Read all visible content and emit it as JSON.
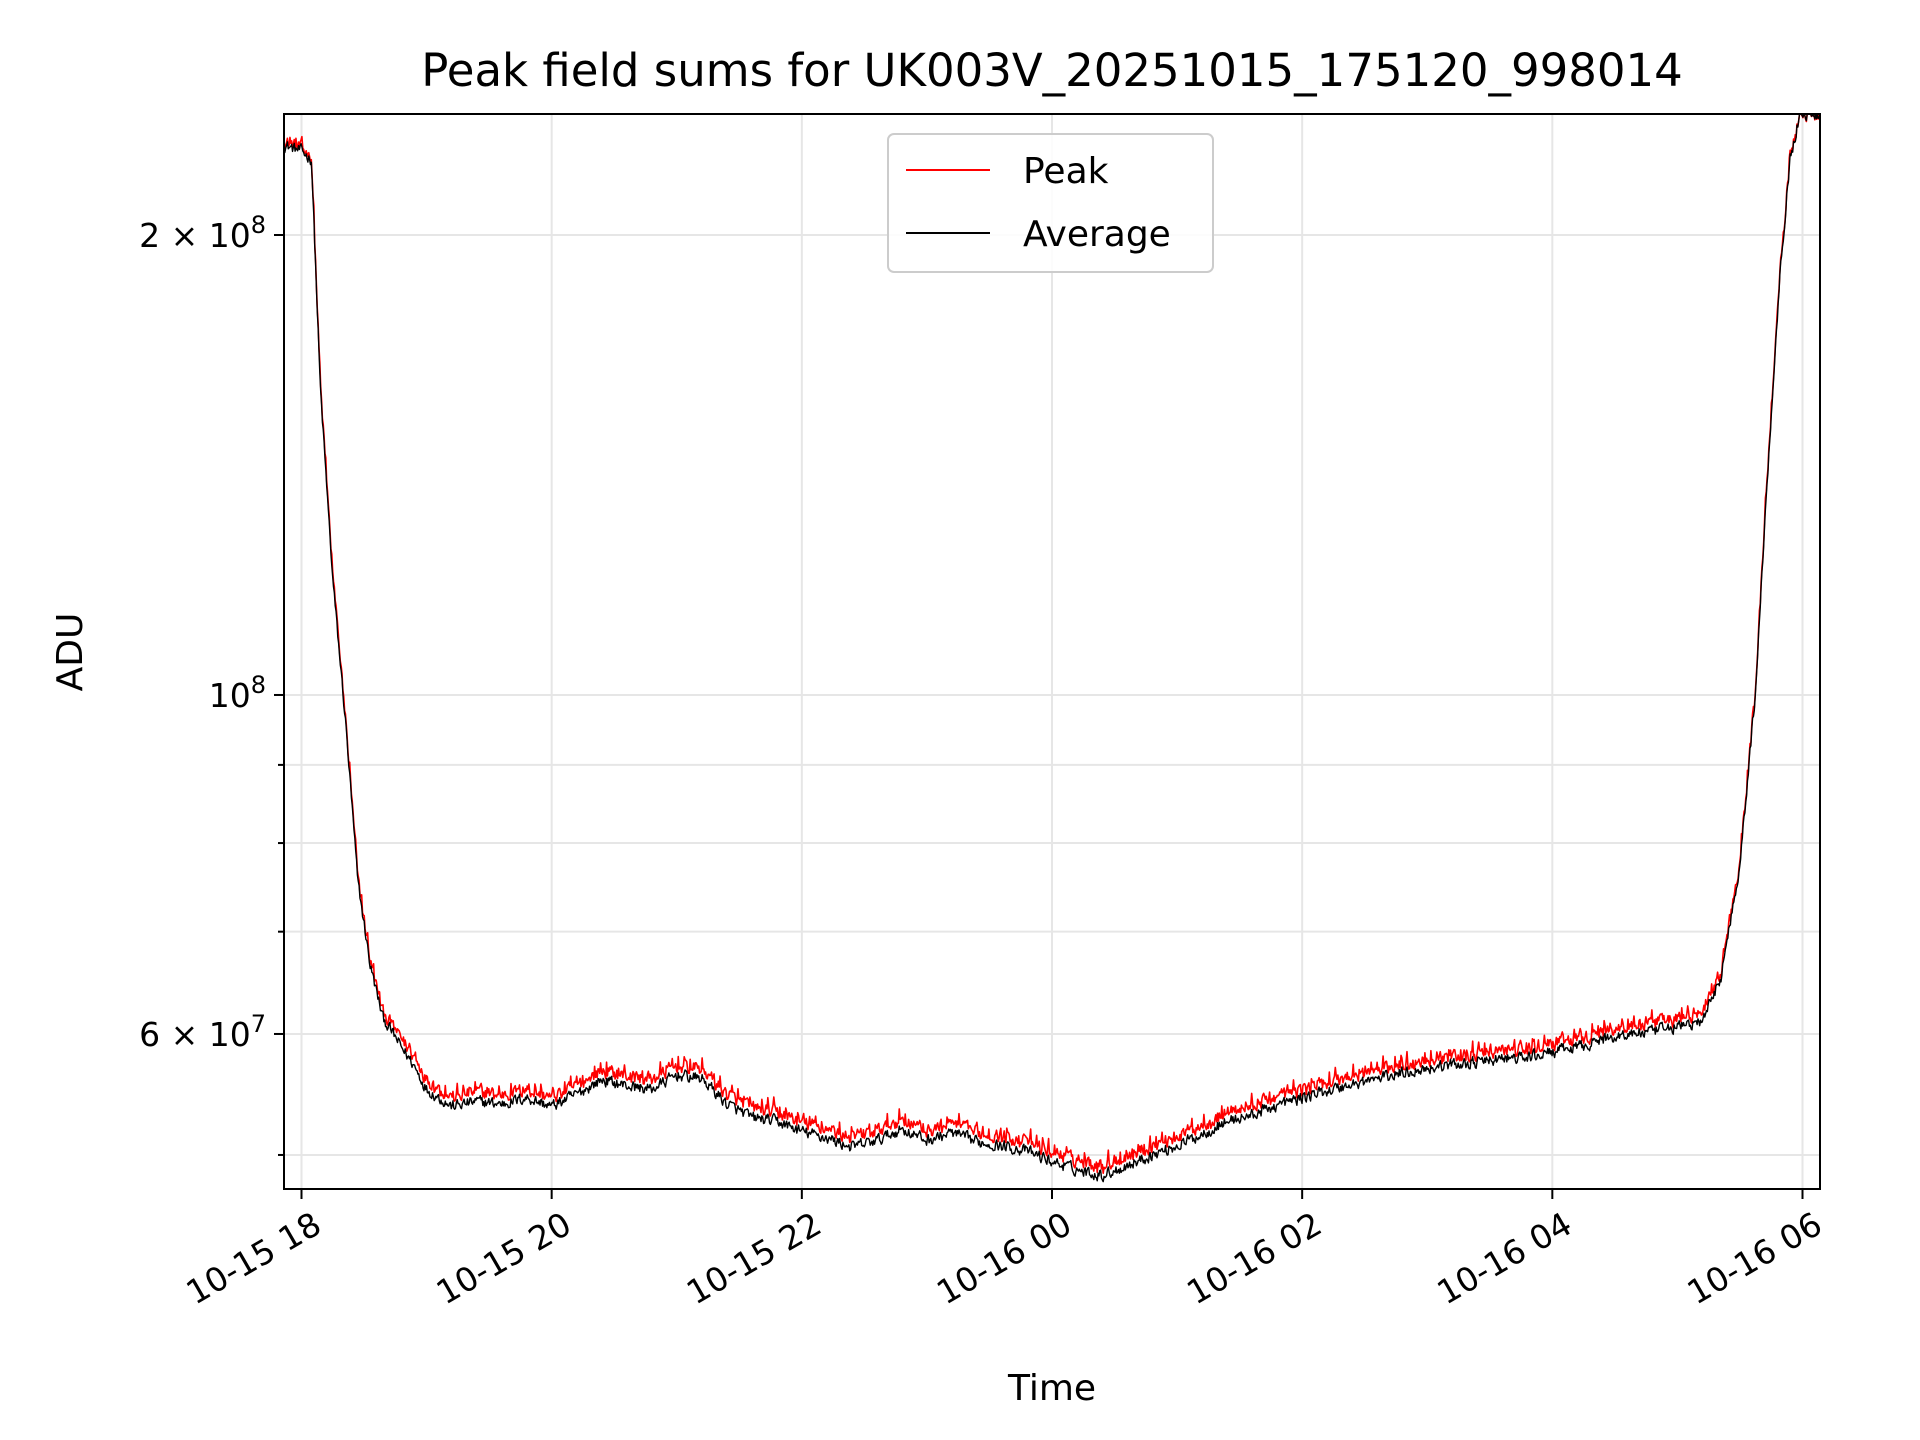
{
  "chart_data": {
    "type": "line",
    "title": "Peak field sums for UK003V_20251015_175120_998014",
    "xlabel": "Time",
    "ylabel": "ADU",
    "yscale": "log",
    "ylim": [
      47500000,
      240000000
    ],
    "xlim_hours": [
      -0.14,
      12.14
    ],
    "x_ticks": [
      {
        "hour": 0,
        "label": "10-15 18"
      },
      {
        "hour": 2,
        "label": "10-15 20"
      },
      {
        "hour": 4,
        "label": "10-15 22"
      },
      {
        "hour": 6,
        "label": "10-16 00"
      },
      {
        "hour": 8,
        "label": "10-16 02"
      },
      {
        "hour": 10,
        "label": "10-16 04"
      },
      {
        "hour": 12,
        "label": "10-16 06"
      }
    ],
    "y_major_ticks": [
      {
        "value": 200000000,
        "label_base": "2 × 10",
        "label_exp": "8"
      },
      {
        "value": 100000000,
        "label_base": "10",
        "label_exp": "8"
      },
      {
        "value": 60000000,
        "label_base": "6 × 10",
        "label_exp": "7"
      }
    ],
    "y_minor_grid": [
      50000000,
      70000000,
      80000000,
      90000000
    ],
    "grid": true,
    "legend_position": "upper center",
    "series": [
      {
        "name": "Peak",
        "color": "#ff0000",
        "x_hours": [
          -0.14,
          0,
          0.08,
          0.15,
          0.25,
          0.35,
          0.45,
          0.55,
          0.65,
          0.8,
          0.9,
          1.0,
          1.2,
          1.4,
          1.6,
          1.8,
          2.0,
          2.2,
          2.4,
          2.6,
          2.8,
          3.0,
          3.2,
          3.4,
          3.6,
          3.8,
          4.0,
          4.2,
          4.4,
          4.6,
          4.8,
          5.0,
          5.2,
          5.4,
          5.6,
          5.8,
          6.0,
          6.2,
          6.4,
          6.6,
          6.8,
          7.0,
          7.2,
          7.4,
          7.6,
          7.8,
          8.0,
          8.2,
          8.4,
          8.6,
          8.8,
          9.0,
          9.2,
          9.4,
          9.6,
          9.8,
          10.0,
          10.2,
          10.4,
          10.6,
          10.8,
          11.0,
          11.2,
          11.35,
          11.5,
          11.62,
          11.72,
          11.82,
          11.9,
          11.98
        ],
        "values": [
          230000000,
          228000000,
          225000000,
          160000000,
          120000000,
          97000000,
          76000000,
          67000000,
          62000000,
          59500000,
          58000000,
          56000000,
          54500000,
          55000000,
          54700000,
          55200000,
          54500000,
          55500000,
          56800000,
          56300000,
          56000000,
          57200000,
          56900000,
          54800000,
          53700000,
          53300000,
          52500000,
          52000000,
          51300000,
          51800000,
          52800000,
          51800000,
          52400000,
          51700000,
          51400000,
          51000000,
          50200000,
          49600000,
          49200000,
          49900000,
          50700000,
          51400000,
          52300000,
          53300000,
          53800000,
          54600000,
          55200000,
          55800000,
          56300000,
          56800000,
          57300000,
          57700000,
          58000000,
          58200000,
          58500000,
          58600000,
          59100000,
          59500000,
          60200000,
          60700000,
          60900000,
          61400000,
          61800000,
          66000000,
          78000000,
          100000000,
          140000000,
          190000000,
          225000000,
          240000000
        ],
        "noise_amplitude": 0.015,
        "noise_offset": 0.01
      },
      {
        "name": "Average",
        "color": "#000000",
        "x_hours": [
          -0.14,
          0,
          0.08,
          0.15,
          0.25,
          0.35,
          0.45,
          0.55,
          0.65,
          0.8,
          0.9,
          1.0,
          1.2,
          1.4,
          1.6,
          1.8,
          2.0,
          2.2,
          2.4,
          2.6,
          2.8,
          3.0,
          3.2,
          3.4,
          3.6,
          3.8,
          4.0,
          4.2,
          4.4,
          4.6,
          4.8,
          5.0,
          5.2,
          5.4,
          5.6,
          5.8,
          6.0,
          6.2,
          6.4,
          6.6,
          6.8,
          7.0,
          7.2,
          7.4,
          7.6,
          7.8,
          8.0,
          8.2,
          8.4,
          8.6,
          8.8,
          9.0,
          9.2,
          9.4,
          9.6,
          9.8,
          10.0,
          10.2,
          10.4,
          10.6,
          10.8,
          11.0,
          11.2,
          11.35,
          11.5,
          11.62,
          11.72,
          11.82,
          11.9,
          11.98
        ],
        "values": [
          229000000,
          227000000,
          224000000,
          159000000,
          119000000,
          96500000,
          75500000,
          66500000,
          61500000,
          58800000,
          57200000,
          55200000,
          53800000,
          54200000,
          54000000,
          54500000,
          53800000,
          54800000,
          56000000,
          55500000,
          55200000,
          56400000,
          56100000,
          54000000,
          52900000,
          52600000,
          51800000,
          51300000,
          50600000,
          51100000,
          52000000,
          51100000,
          51700000,
          51000000,
          50700000,
          50300000,
          49500000,
          48900000,
          48500000,
          49200000,
          50000000,
          50700000,
          51600000,
          52600000,
          53100000,
          53900000,
          54500000,
          55100000,
          55600000,
          56100000,
          56600000,
          57000000,
          57300000,
          57500000,
          57800000,
          57900000,
          58400000,
          58800000,
          59500000,
          60000000,
          60200000,
          60700000,
          61100000,
          65500000,
          77500000,
          99500000,
          139000000,
          189000000,
          224000000,
          240000000
        ],
        "noise_amplitude": 0.013,
        "noise_offset": 0
      }
    ]
  }
}
